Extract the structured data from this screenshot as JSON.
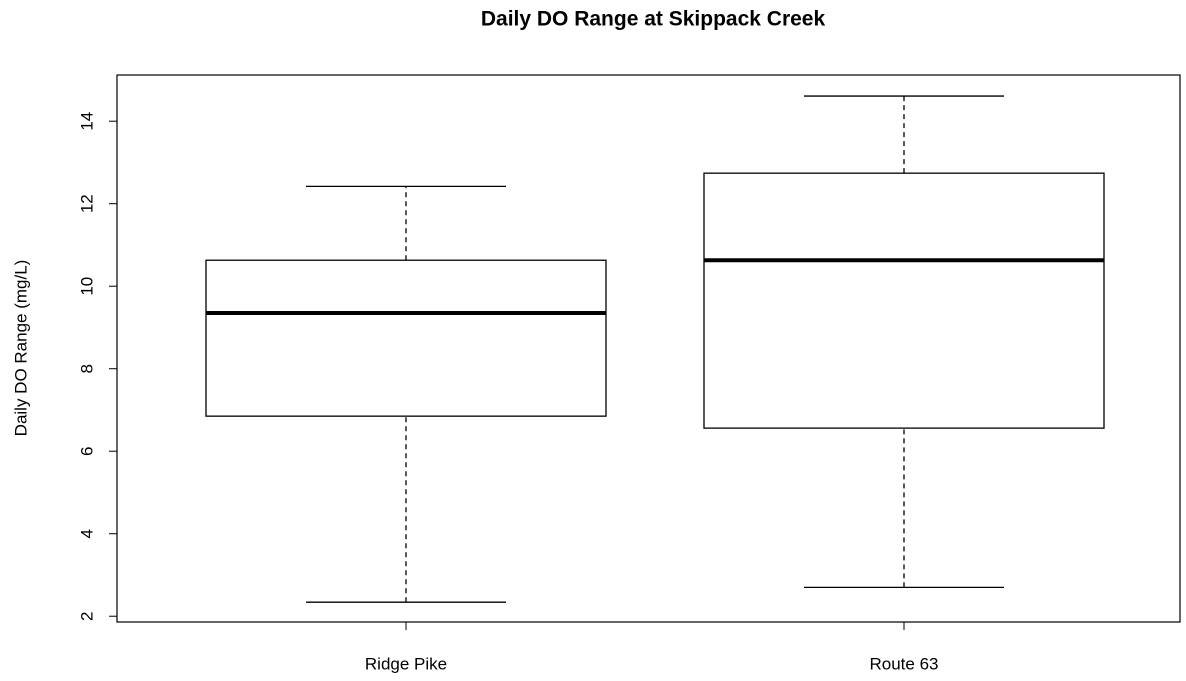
{
  "chart_data": {
    "type": "box",
    "title": "Daily DO Range at Skippack Creek",
    "y_label": "Daily DO Range (mg/L)",
    "categories": [
      "Ridge Pike",
      "Route 63"
    ],
    "boxes": [
      {
        "min": 2.34,
        "q1": 6.85,
        "median": 9.35,
        "q3": 10.63,
        "max": 12.42
      },
      {
        "min": 2.7,
        "q1": 6.56,
        "median": 10.63,
        "q3": 12.74,
        "max": 14.61
      }
    ],
    "ylim": [
      1.86,
      15.12
    ],
    "yticks": [
      2,
      4,
      6,
      8,
      10,
      12,
      14
    ]
  }
}
